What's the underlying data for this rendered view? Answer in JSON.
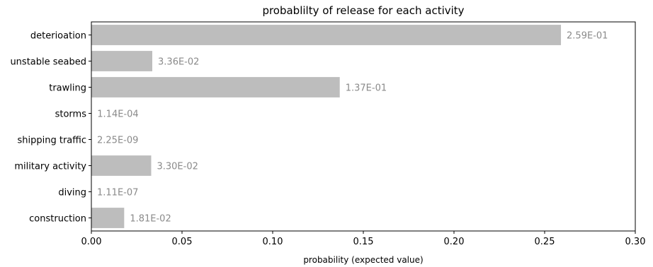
{
  "chart_data": {
    "type": "bar",
    "orientation": "horizontal",
    "title": "probablilty of release for each activity",
    "xlabel": "probability (expected value)",
    "ylabel": "",
    "xlim": [
      0,
      0.3
    ],
    "xticks": [
      "0.00",
      "0.05",
      "0.10",
      "0.15",
      "0.20",
      "0.25",
      "0.30"
    ],
    "grid": false,
    "categories": [
      "deterioation",
      "unstable seabed",
      "trawling",
      "storms",
      "shipping traffic",
      "military activity",
      "diving",
      "construction"
    ],
    "values": [
      0.259,
      0.0336,
      0.137,
      0.000114,
      2.25e-09,
      0.033,
      1.11e-07,
      0.0181
    ],
    "value_labels": [
      "2.59E-01",
      "3.36E-02",
      "1.37E-01",
      "1.14E-04",
      "2.25E-09",
      "3.30E-02",
      "1.11E-07",
      "1.81E-02"
    ],
    "colors": {
      "bar": "#bdbdbd",
      "value_label": "#8a8a8a",
      "axis": "#000000"
    }
  }
}
